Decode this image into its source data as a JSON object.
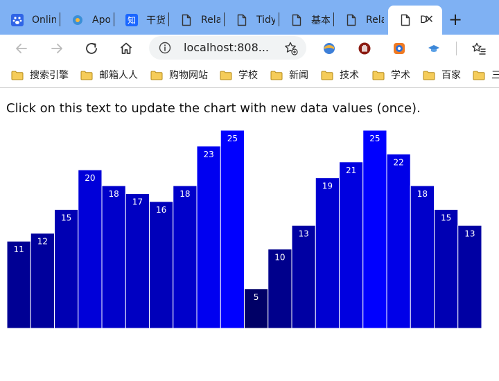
{
  "tabs": [
    {
      "title": "Onlin",
      "icon": "baidu-paw-icon",
      "color": "#2f64e6"
    },
    {
      "title": "Apow",
      "icon": "apowersoft-icon",
      "color": "#3b8fd6"
    },
    {
      "title": "干货!",
      "icon": "zhihu-icon",
      "color": "#1a66ff"
    },
    {
      "title": "Relati",
      "icon": "page-icon"
    },
    {
      "title": "Tidyve",
      "icon": "page-icon"
    },
    {
      "title": "基本数",
      "icon": "page-icon"
    },
    {
      "title": "Relati",
      "icon": "page-icon"
    },
    {
      "title": "D",
      "icon": "page-icon",
      "active": true
    }
  ],
  "address": {
    "url": "localhost:808..."
  },
  "bookmarks": [
    "搜索引擎",
    "邮箱人人",
    "购物网站",
    "学校",
    "新闻",
    "技术",
    "学术",
    "百家",
    "三"
  ],
  "page": {
    "prompt": "Click on this text to update the chart with new data values (once)."
  },
  "chart_data": {
    "type": "bar",
    "values": [
      11,
      12,
      15,
      20,
      18,
      17,
      16,
      18,
      23,
      25,
      5,
      10,
      13,
      19,
      21,
      25,
      22,
      18,
      15,
      13
    ],
    "ylim": [
      0,
      25
    ],
    "color_scale": [
      "#000040",
      "#0000ff"
    ],
    "bar_stroke": "#ffffff",
    "label_color": "#ffffff"
  }
}
